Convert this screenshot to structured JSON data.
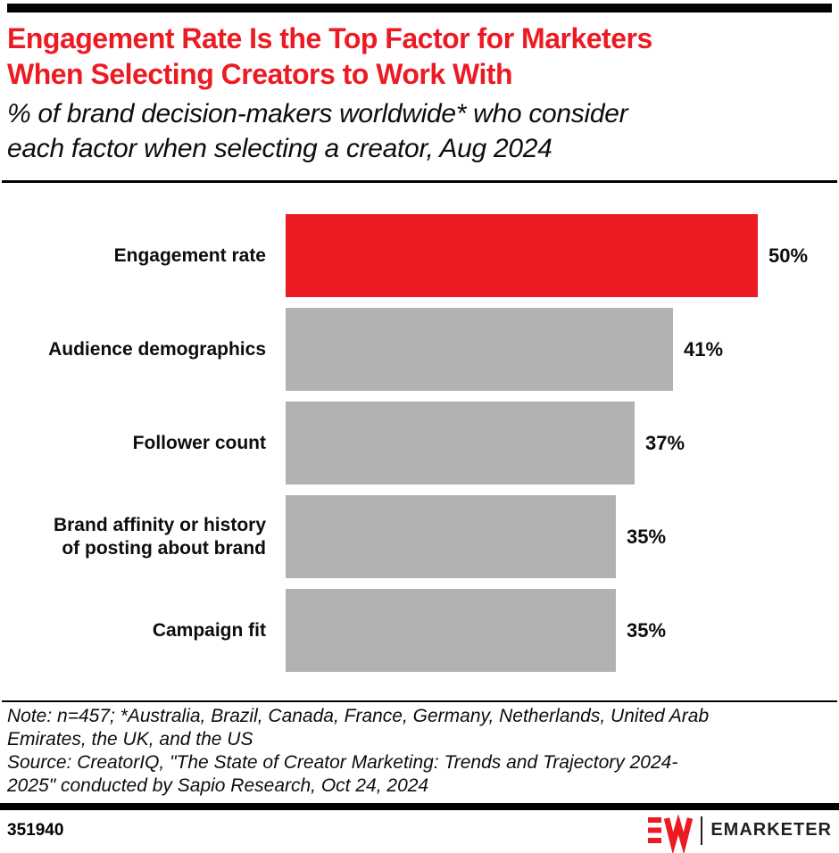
{
  "header": {
    "title_lines": [
      "Engagement Rate Is the Top Factor for Marketers",
      "When Selecting Creators to Work With"
    ],
    "subtitle_lines": [
      "% of brand decision-makers worldwide* who consider",
      "each factor when selecting a creator, Aug 2024"
    ]
  },
  "chart_data": {
    "type": "bar",
    "orientation": "horizontal",
    "title": "Engagement Rate Is the Top Factor for Marketers When Selecting Creators to Work With",
    "subtitle": "% of brand decision-makers worldwide* who consider each factor when selecting a creator, Aug 2024",
    "unit": "%",
    "categories": [
      "Engagement rate",
      "Audience demographics",
      "Follower count",
      "Brand affinity or history of posting about brand",
      "Campaign fit"
    ],
    "label_lines": [
      [
        "Engagement rate"
      ],
      [
        "Audience demographics"
      ],
      [
        "Follower count"
      ],
      [
        "Brand affinity or history",
        "of posting about brand"
      ],
      [
        "Campaign fit"
      ]
    ],
    "values": [
      50,
      41,
      37,
      35,
      35
    ],
    "value_labels": [
      "50%",
      "41%",
      "37%",
      "35%",
      "35%"
    ],
    "xlim": [
      0,
      58
    ],
    "grid": false,
    "legend": false,
    "value_label_position": "right-of-bar",
    "highlight_index": 0,
    "colors": {
      "highlight": "#EC1B23",
      "default": "#B2B2B2"
    }
  },
  "notes": {
    "note_lines": [
      "Note: n=457; *Australia, Brazil, Canada, France, Germany, Netherlands, United Arab",
      "Emirates, the UK, and the US"
    ],
    "source_lines": [
      "Source: CreatorIQ, \"The State of Creator Marketing: Trends and Trajectory 2024-",
      "2025\" conducted by Sapio Research, Oct 24, 2024"
    ]
  },
  "footer": {
    "chart_id": "351940",
    "brand_name": "EMARKETER"
  },
  "colors": {
    "accent_red": "#EC1B23",
    "bar_gray": "#B2B2B2",
    "brand_dark": "#231F20",
    "text": "#0d0d0d"
  }
}
